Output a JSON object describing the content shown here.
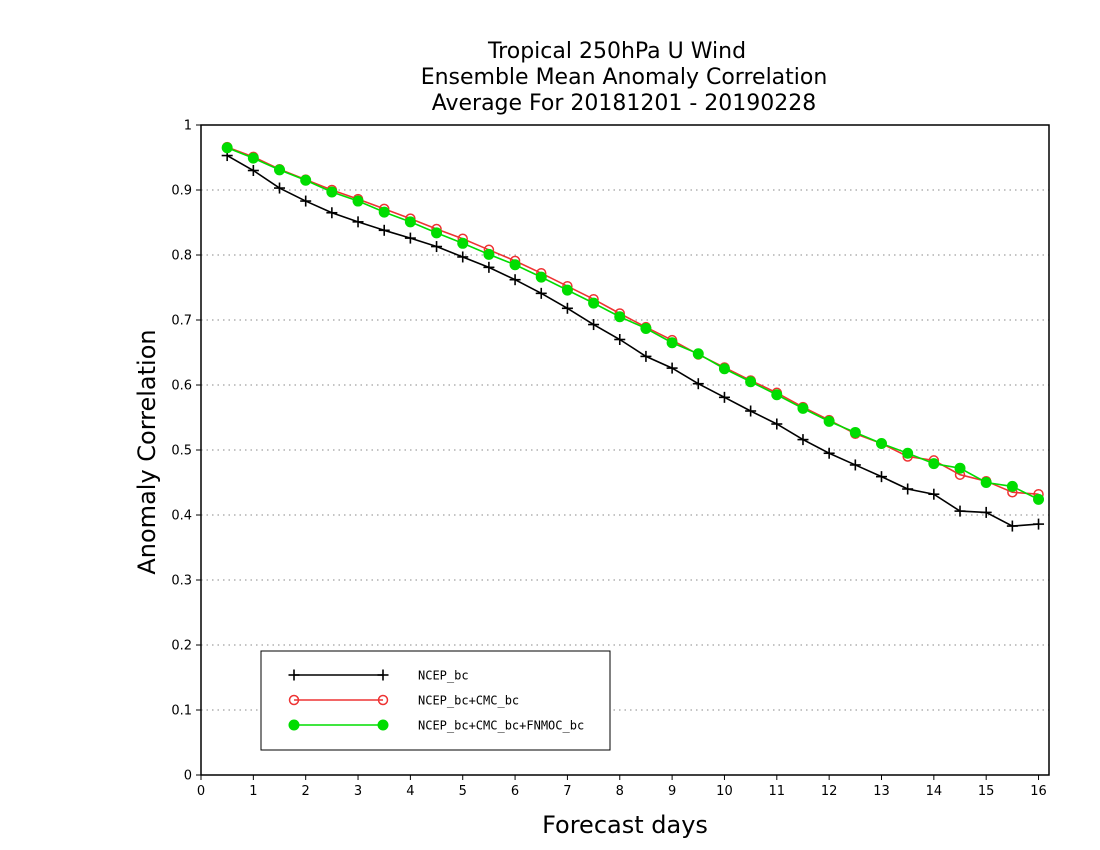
{
  "chart_data": {
    "type": "line",
    "title_lines": [
      "Tropical 250hPa U Wind",
      "Ensemble Mean Anomaly Correlation",
      "Average For 20181201 - 20190228"
    ],
    "xlabel": "Forecast days",
    "ylabel": "Anomaly Correlation",
    "xlim": [
      0,
      16.2
    ],
    "ylim": [
      0,
      1
    ],
    "xticks": [
      0,
      1,
      2,
      3,
      4,
      5,
      6,
      7,
      8,
      9,
      10,
      11,
      12,
      13,
      14,
      15,
      16
    ],
    "xtick_labels": [
      "0",
      "1",
      "2",
      "3",
      "4",
      "5",
      "6",
      "7",
      "8",
      "9",
      "10",
      "11",
      "12",
      "13",
      "14",
      "15",
      "16"
    ],
    "yticks": [
      0,
      0.1,
      0.2,
      0.3,
      0.4,
      0.5,
      0.6,
      0.7,
      0.8,
      0.9,
      1
    ],
    "ytick_labels": [
      "0",
      "0.1",
      "0.2",
      "0.3",
      "0.4",
      "0.5",
      "0.6",
      "0.7",
      "0.8",
      "0.9",
      "1"
    ],
    "grid": "horizontal dotted",
    "legend_position": "bottom-left",
    "x": [
      0.5,
      1,
      1.5,
      2,
      2.5,
      3,
      3.5,
      4,
      4.5,
      5,
      5.5,
      6,
      6.5,
      7,
      7.5,
      8,
      8.5,
      9,
      9.5,
      10,
      10.5,
      11,
      11.5,
      12,
      12.5,
      13,
      13.5,
      14,
      14.5,
      15,
      15.5,
      16
    ],
    "series": [
      {
        "name": "NCEP_bc",
        "color": "#000000",
        "marker": "plus",
        "values": [
          0.953,
          0.93,
          0.903,
          0.883,
          0.865,
          0.851,
          0.838,
          0.826,
          0.813,
          0.797,
          0.781,
          0.762,
          0.741,
          0.718,
          0.693,
          0.67,
          0.644,
          0.626,
          0.602,
          0.581,
          0.56,
          0.54,
          0.516,
          0.495,
          0.477,
          0.459,
          0.44,
          0.432,
          0.406,
          0.404,
          0.383,
          0.386
        ]
      },
      {
        "name": "NCEP_bc+CMC_bc",
        "color": "#ee3333",
        "marker": "open-circle",
        "values": [
          0.966,
          0.951,
          0.932,
          0.916,
          0.9,
          0.886,
          0.871,
          0.856,
          0.84,
          0.825,
          0.808,
          0.791,
          0.772,
          0.752,
          0.732,
          0.71,
          0.689,
          0.669,
          0.647,
          0.627,
          0.607,
          0.588,
          0.566,
          0.546,
          0.525,
          0.51,
          0.49,
          0.484,
          0.462,
          0.452,
          0.435,
          0.432
        ]
      },
      {
        "name": "NCEP_bc+CMC_bc+FNMOC_bc",
        "color": "#00dd00",
        "marker": "filled-circle",
        "values": [
          0.965,
          0.949,
          0.931,
          0.915,
          0.897,
          0.883,
          0.866,
          0.851,
          0.834,
          0.818,
          0.801,
          0.785,
          0.766,
          0.746,
          0.726,
          0.705,
          0.687,
          0.665,
          0.648,
          0.625,
          0.605,
          0.585,
          0.564,
          0.544,
          0.527,
          0.51,
          0.495,
          0.479,
          0.472,
          0.45,
          0.444,
          0.424
        ]
      }
    ]
  }
}
